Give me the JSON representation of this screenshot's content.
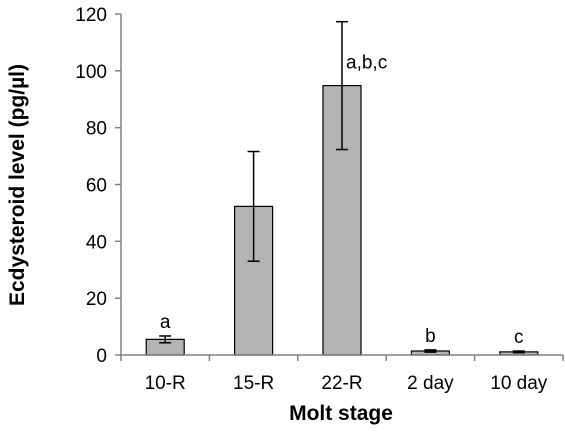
{
  "chart_data": {
    "type": "bar",
    "categories": [
      "10-R",
      "15-R",
      "22-R",
      "2 day",
      "10 day"
    ],
    "values": [
      5.5,
      52.3,
      94.8,
      1.4,
      1.1
    ],
    "error_bars": [
      1.2,
      19.3,
      22.5,
      0.4,
      0.3
    ],
    "annotations": [
      "a",
      "",
      "a,b,c",
      "b",
      "c"
    ],
    "xlabel": "Molt stage",
    "ylabel": "Ecdysteroid level (pg/µl)",
    "ylim": [
      0,
      120
    ],
    "yticks": [
      0,
      20,
      40,
      60,
      80,
      100,
      120
    ],
    "grid": false,
    "legend": false,
    "colors": {
      "bar_fill": "#b3b3b3",
      "bar_stroke": "#000000",
      "axis": "#808080",
      "error_bar": "#000000"
    }
  }
}
